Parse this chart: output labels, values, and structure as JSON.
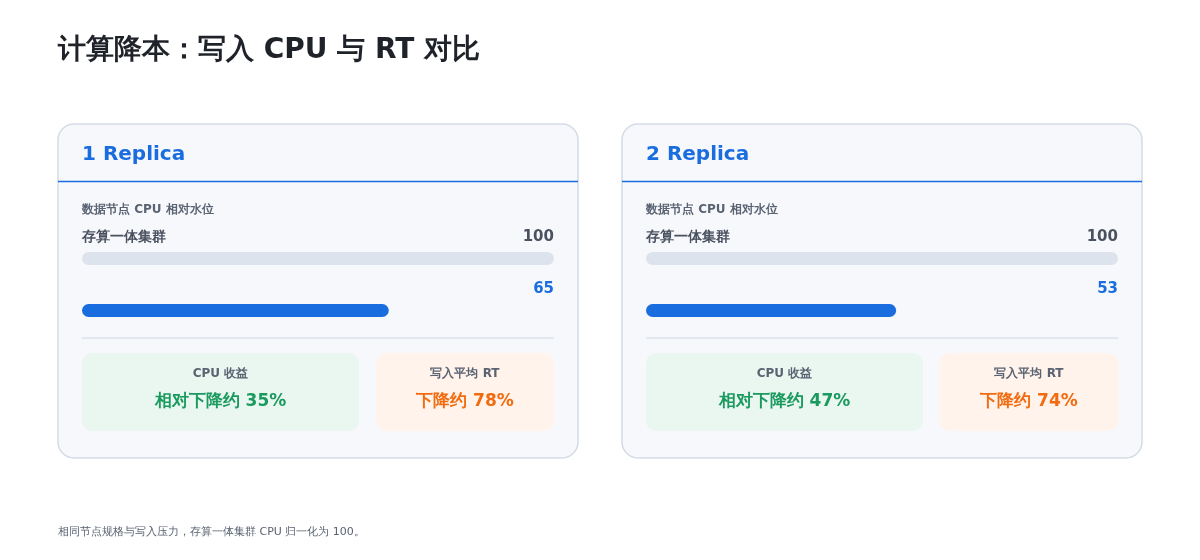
{
  "chart_data": [
    {
      "type": "other",
      "title": "计算降本：写入 CPU 与 RT 对比",
      "annotations": [
        "相同节点规格与写入压力，存算一体集群 CPU 归一化为 100。"
      ]
    },
    {
      "type": "bar",
      "orientation": "horizontal",
      "title": "1 Replica",
      "subtitle": "数据节点 CPU 相对水位",
      "categories": [
        "存算一体集群",
        null
      ],
      "values": [
        100,
        65
      ],
      "colors": [
        "#dde3ec",
        "#1a6ddf"
      ],
      "data_labels": true,
      "annotations": [
        "CPU 收益",
        "相对下降约 35%",
        "写入平均 RT",
        "下降约 78%"
      ]
    },
    {
      "type": "bar",
      "orientation": "horizontal",
      "title": "2 Replica",
      "subtitle": "数据节点 CPU 相对水位",
      "categories": [
        "存算一体集群",
        null
      ],
      "values": [
        100,
        53
      ],
      "colors": [
        "#dde3ec",
        "#1a6ddf"
      ],
      "data_labels": true,
      "annotations": [
        "CPU 收益",
        "相对下降约 47%",
        "写入平均 RT",
        "下降约 74%"
      ]
    }
  ]
}
